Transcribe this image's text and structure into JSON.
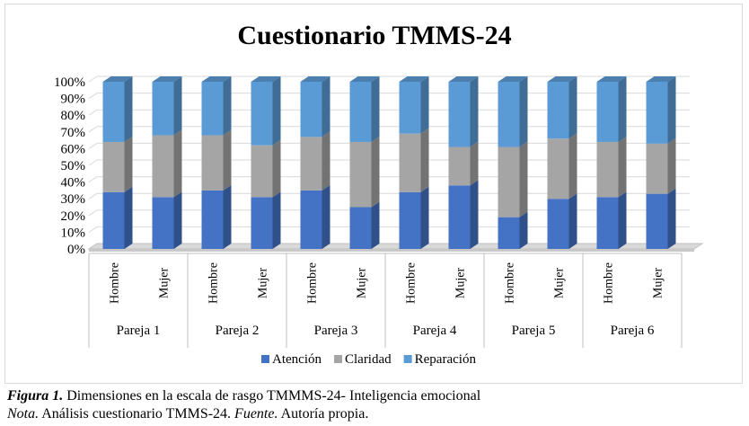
{
  "chart_data": {
    "type": "bar",
    "stacked": "percent",
    "title": "Cuestionario TMMS-24",
    "groups": [
      "Pareja 1",
      "Pareja 2",
      "Pareja 3",
      "Pareja 4",
      "Pareja 5",
      "Pareja 6"
    ],
    "categories": [
      "Hombre",
      "Mujer",
      "Hombre",
      "Mujer",
      "Hombre",
      "Mujer",
      "Hombre",
      "Mujer",
      "Hombre",
      "Mujer",
      "Hombre",
      "Mujer"
    ],
    "y_ticks": [
      "0%",
      "10%",
      "20%",
      "30%",
      "40%",
      "50%",
      "60%",
      "70%",
      "80%",
      "90%",
      "100%"
    ],
    "ylim": [
      0,
      100
    ],
    "legend_position": "bottom",
    "series": [
      {
        "name": "Atención",
        "color": "#4472c4",
        "values": [
          34,
          31,
          35,
          31,
          35,
          25,
          34,
          38,
          19,
          30,
          31,
          33
        ]
      },
      {
        "name": "Claridad",
        "color": "#a5a5a5",
        "values": [
          30,
          37,
          33,
          31,
          32,
          39,
          35,
          23,
          42,
          36,
          33,
          30
        ]
      },
      {
        "name": "Reparación",
        "color": "#5b9bd5",
        "values": [
          36,
          32,
          32,
          38,
          33,
          36,
          31,
          39,
          39,
          34,
          36,
          37
        ]
      }
    ]
  },
  "caption": {
    "fig_label": "Figura 1.",
    "fig_text": " Dimensiones en la escala de rasgo TMMMS-24- Inteligencia emocional",
    "nota_label": "Nota.",
    "nota_text": " Análisis cuestionario TMMS-24. ",
    "fuente_label": "Fuente.",
    "fuente_text": " Autoría propia."
  }
}
